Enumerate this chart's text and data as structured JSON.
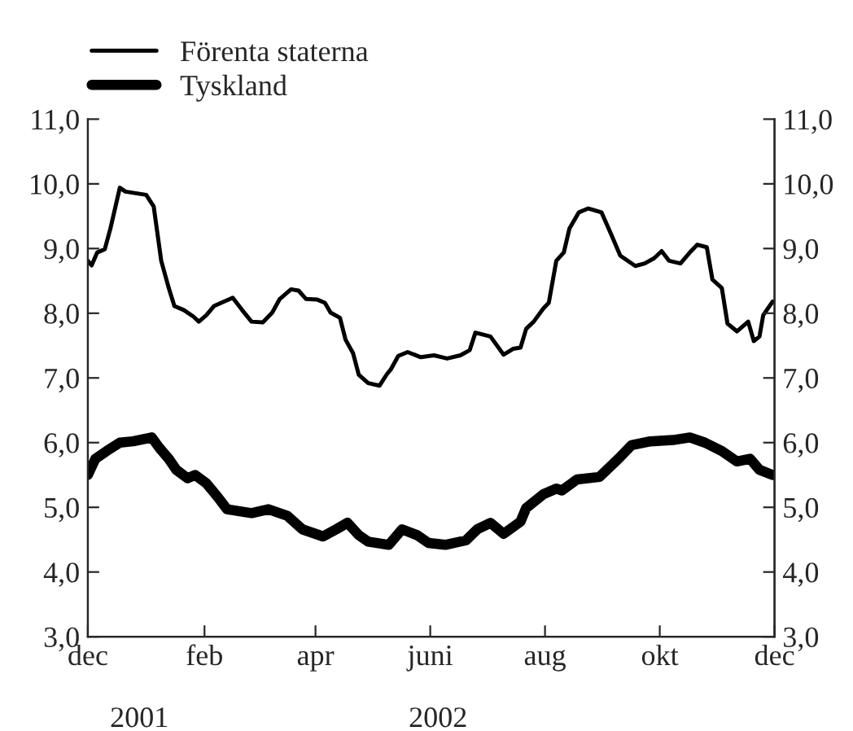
{
  "chart_data": {
    "type": "line",
    "xlim": [
      "2001-12-01",
      "2002-12-01"
    ],
    "xticks": [
      {
        "value": "2001-12-01",
        "label": "dec"
      },
      {
        "value": "2002-02-01",
        "label": "feb"
      },
      {
        "value": "2002-04-01",
        "label": "apr"
      },
      {
        "value": "2002-06-01",
        "label": "juni"
      },
      {
        "value": "2002-08-01",
        "label": "aug"
      },
      {
        "value": "2002-10-01",
        "label": "okt"
      },
      {
        "value": "2002-12-01",
        "label": "dec"
      }
    ],
    "ylim": [
      3,
      11
    ],
    "yticks": [
      {
        "value": 3,
        "label": "3,0"
      },
      {
        "value": 4,
        "label": "4,0"
      },
      {
        "value": 5,
        "label": "5,0"
      },
      {
        "value": 6,
        "label": "6,0"
      },
      {
        "value": 7,
        "label": "7,0"
      },
      {
        "value": 8,
        "label": "8,0"
      },
      {
        "value": 9,
        "label": "9,0"
      },
      {
        "value": 10,
        "label": "10,0"
      },
      {
        "value": 11,
        "label": "11,0"
      }
    ],
    "y2lim": [
      3,
      11
    ],
    "y2ticks": [
      {
        "value": 3,
        "label": "3,0"
      },
      {
        "value": 4,
        "label": "4,0"
      },
      {
        "value": 5,
        "label": "5,0"
      },
      {
        "value": 6,
        "label": "6,0"
      },
      {
        "value": 7,
        "label": "7,0"
      },
      {
        "value": 8,
        "label": "8,0"
      },
      {
        "value": 9,
        "label": "9,0"
      },
      {
        "value": 10,
        "label": "10,0"
      },
      {
        "value": 11,
        "label": "11,0"
      }
    ],
    "legend": "top left",
    "grid": false,
    "annotations": [
      "2001",
      "2002"
    ],
    "series": [
      {
        "name": "Förenta staterna",
        "color": "#000000",
        "x": [
          "2001-12-01",
          "2001-12-03",
          "2001-12-06",
          "2001-12-10",
          "2001-12-13",
          "2001-12-18",
          "2001-12-21",
          "2002-01-01",
          "2002-01-05",
          "2002-01-09",
          "2002-01-13",
          "2002-01-16",
          "2002-01-21",
          "2002-01-26",
          "2002-01-29",
          "2002-02-02",
          "2002-02-06",
          "2002-02-16",
          "2002-02-21",
          "2002-02-26",
          "2002-03-04",
          "2002-03-09",
          "2002-03-13",
          "2002-03-19",
          "2002-03-23",
          "2002-03-27",
          "2002-04-02",
          "2002-04-06",
          "2002-04-09",
          "2002-04-14",
          "2002-04-17",
          "2002-04-21",
          "2002-04-24",
          "2002-04-29",
          "2002-05-05",
          "2002-05-09",
          "2002-05-11",
          "2002-05-15",
          "2002-05-20",
          "2002-05-27",
          "2002-06-03",
          "2002-06-10",
          "2002-06-17",
          "2002-06-22",
          "2002-06-25",
          "2002-07-03",
          "2002-07-10",
          "2002-07-15",
          "2002-07-19",
          "2002-07-22",
          "2002-07-26",
          "2002-07-31",
          "2002-08-03",
          "2002-08-07",
          "2002-08-11",
          "2002-08-14",
          "2002-08-19",
          "2002-08-24",
          "2002-08-31",
          "2002-09-05",
          "2002-09-10",
          "2002-09-18",
          "2002-09-23",
          "2002-09-28",
          "2002-10-02",
          "2002-10-06",
          "2002-10-12",
          "2002-10-17",
          "2002-10-21",
          "2002-10-26",
          "2002-10-29",
          "2002-11-03",
          "2002-11-06",
          "2002-11-11",
          "2002-11-17",
          "2002-11-20",
          "2002-11-23",
          "2002-11-25",
          "2002-11-30"
        ],
        "values": [
          8.81,
          8.74,
          8.94,
          8.99,
          9.31,
          9.94,
          9.88,
          9.83,
          9.65,
          8.81,
          8.39,
          8.11,
          8.05,
          7.95,
          7.87,
          7.97,
          8.11,
          8.24,
          8.05,
          7.87,
          7.86,
          8.01,
          8.22,
          8.37,
          8.35,
          8.22,
          8.21,
          8.16,
          8.01,
          7.93,
          7.59,
          7.38,
          7.05,
          6.92,
          6.88,
          7.06,
          7.13,
          7.34,
          7.4,
          7.32,
          7.35,
          7.3,
          7.35,
          7.43,
          7.7,
          7.64,
          7.36,
          7.45,
          7.47,
          7.76,
          7.87,
          8.07,
          8.16,
          8.81,
          8.94,
          9.31,
          9.56,
          9.62,
          9.56,
          9.23,
          8.89,
          8.73,
          8.77,
          8.85,
          8.96,
          8.81,
          8.77,
          8.94,
          9.06,
          9.02,
          8.52,
          8.39,
          7.84,
          7.72,
          7.87,
          7.57,
          7.64,
          7.97,
          8.18
        ]
      },
      {
        "name": "Tyskland",
        "color": "#000000",
        "x": [
          "2001-12-01",
          "2001-12-05",
          "2001-12-11",
          "2001-12-18",
          "2001-12-25",
          "2002-01-04",
          "2002-01-08",
          "2002-01-13",
          "2002-01-17",
          "2002-01-23",
          "2002-01-27",
          "2002-02-02",
          "2002-02-08",
          "2002-02-13",
          "2002-02-26",
          "2002-03-07",
          "2002-03-17",
          "2002-03-25",
          "2002-04-05",
          "2002-04-12",
          "2002-04-18",
          "2002-04-24",
          "2002-04-29",
          "2002-05-10",
          "2002-05-17",
          "2002-05-25",
          "2002-05-31",
          "2002-06-09",
          "2002-06-20",
          "2002-06-26",
          "2002-07-03",
          "2002-07-10",
          "2002-07-19",
          "2002-07-22",
          "2002-07-31",
          "2002-08-07",
          "2002-08-10",
          "2002-08-18",
          "2002-08-30",
          "2002-09-09",
          "2002-09-16",
          "2002-09-26",
          "2002-10-08",
          "2002-10-17",
          "2002-10-25",
          "2002-11-03",
          "2002-11-11",
          "2002-11-18",
          "2002-11-23",
          "2002-11-30"
        ],
        "values": [
          5.5,
          5.75,
          5.87,
          6.0,
          6.02,
          6.08,
          5.92,
          5.75,
          5.58,
          5.45,
          5.5,
          5.37,
          5.16,
          4.97,
          4.91,
          4.97,
          4.87,
          4.66,
          4.55,
          4.66,
          4.76,
          4.57,
          4.47,
          4.42,
          4.66,
          4.57,
          4.45,
          4.42,
          4.49,
          4.66,
          4.76,
          4.59,
          4.78,
          4.99,
          5.2,
          5.29,
          5.26,
          5.43,
          5.47,
          5.75,
          5.96,
          6.02,
          6.04,
          6.08,
          6.0,
          5.87,
          5.71,
          5.75,
          5.58,
          5.5
        ]
      }
    ]
  }
}
